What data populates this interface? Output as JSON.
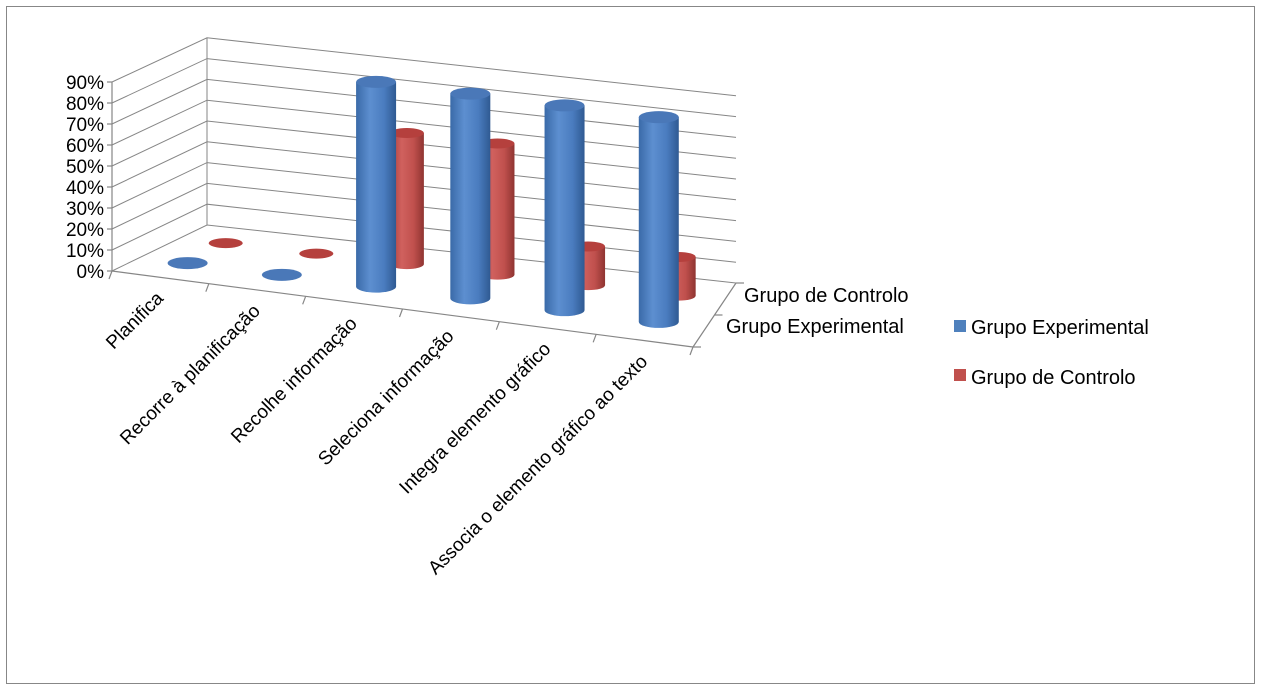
{
  "chart_data": {
    "type": "bar",
    "subtype": "3d-cylinder",
    "categories": [
      "Planifica",
      "Recorre à planificação",
      "Recolhe informação",
      "Seleciona informação",
      "Integra elemento gráfico",
      "Associa o elemento gráfico ao texto"
    ],
    "series": [
      {
        "name": "Grupo Experimental",
        "color": "#4F81BD",
        "values": [
          0,
          0,
          91,
          91,
          91,
          91
        ]
      },
      {
        "name": "Grupo de Controlo",
        "color": "#C0504D",
        "values": [
          0,
          0,
          61,
          61,
          18,
          18
        ]
      }
    ],
    "y_ticks": [
      "0%",
      "10%",
      "20%",
      "30%",
      "40%",
      "50%",
      "60%",
      "70%",
      "80%",
      "90%"
    ],
    "ylim": [
      0,
      90
    ],
    "depth_labels": [
      "Grupo de Controlo",
      "Grupo Experimental"
    ],
    "legend": {
      "position": "right",
      "items": [
        "Grupo Experimental",
        "Grupo de Controlo"
      ]
    },
    "grid": true
  }
}
